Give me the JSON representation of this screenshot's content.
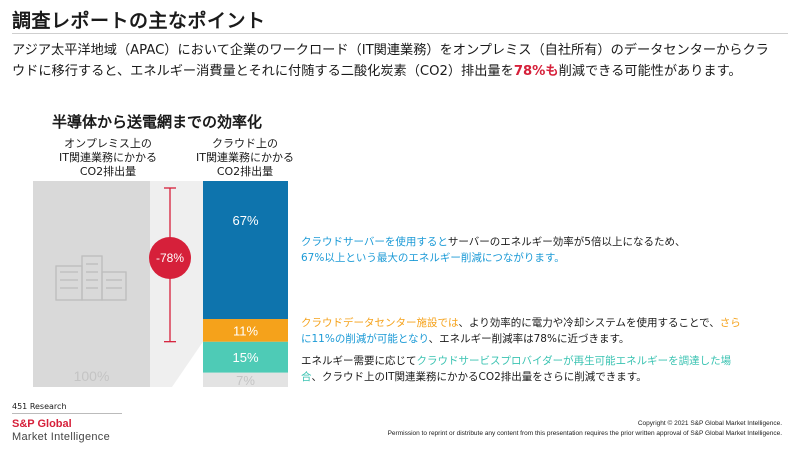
{
  "header": {
    "title": "調査レポートの主なポイント"
  },
  "intro": {
    "text_before": "アジア太平洋地域（APAC）において企業のワークロード（IT関連業務）をオンプレミス（自社所有）のデータセンターからクラウドに移行すると、エネルギー消費量とそれに付随する二酸化炭素（CO2）排出量を",
    "highlight": "78%も",
    "text_after": "削減できる可能性があります。"
  },
  "chart_data": {
    "type": "bar",
    "title": "半導体から送電網までの効率化",
    "categories": [
      "オンプレミス上のIT関連業務にかかるCO2排出量",
      "クラウド上のIT関連業務にかかるCO2排出量"
    ],
    "category_labels": [
      [
        "オンプレミス上の",
        "IT関連業務にかかる",
        "CO2排出量"
      ],
      [
        "クラウド上の",
        "IT関連業務にかかる",
        "CO2排出量"
      ]
    ],
    "left_bar": {
      "value": 100,
      "label": "100%"
    },
    "right_bar_segments": [
      {
        "name": "remaining",
        "value": 7,
        "label": "7%",
        "color": "#e3e3e3"
      },
      {
        "name": "renewable",
        "value": 15,
        "label": "15%",
        "color": "#4ecbb6"
      },
      {
        "name": "datacenter",
        "value": 11,
        "label": "11%",
        "color": "#f5a21b"
      },
      {
        "name": "server",
        "value": 67,
        "label": "67%",
        "color": "#0e74ad"
      }
    ],
    "reduction": {
      "value": -78,
      "label": "-78%"
    },
    "ylim": [
      0,
      100
    ],
    "colors": {
      "left_bar": "#d9d9d9",
      "bracket": "#d6203a",
      "badge": "#d6203a"
    }
  },
  "descriptions": {
    "server": {
      "colored": "クラウドサーバーを使用すると",
      "rest_line1": "サーバーのエネルギー効率が5倍以上になるため、",
      "line2": "67%以上という最大のエネルギー削減につながります。"
    },
    "datacenter": {
      "colored": "クラウドデータセンター施設では",
      "rest_line1": "、より効率的に電力や冷却システムを使用することで、",
      "colored2": "さら",
      "line2_colored": "に11%の削減が可能となり",
      "line2_rest": "、エネルギー削減率は78%に近づきます。"
    },
    "renewable": {
      "lead": "エネルギー需要に応じて",
      "colored": "クラウドサービスプロバイダーが再生可能エネルギーを調達した場",
      "line2_colored": "合",
      "line2_rest": "、クラウド上のIT関連業務にかかるCO2排出量をさらに削減できます。"
    }
  },
  "footer": {
    "source": "451 Research",
    "logo_line1": "S&P Global",
    "logo_line2": "Market Intelligence",
    "copyright": "Copyright © 2021 S&P Global Market Intelligence.",
    "permission": "Permission to reprint or distribute any content from this presentation requires the prior written approval of S&P Global Market Intelligence."
  }
}
